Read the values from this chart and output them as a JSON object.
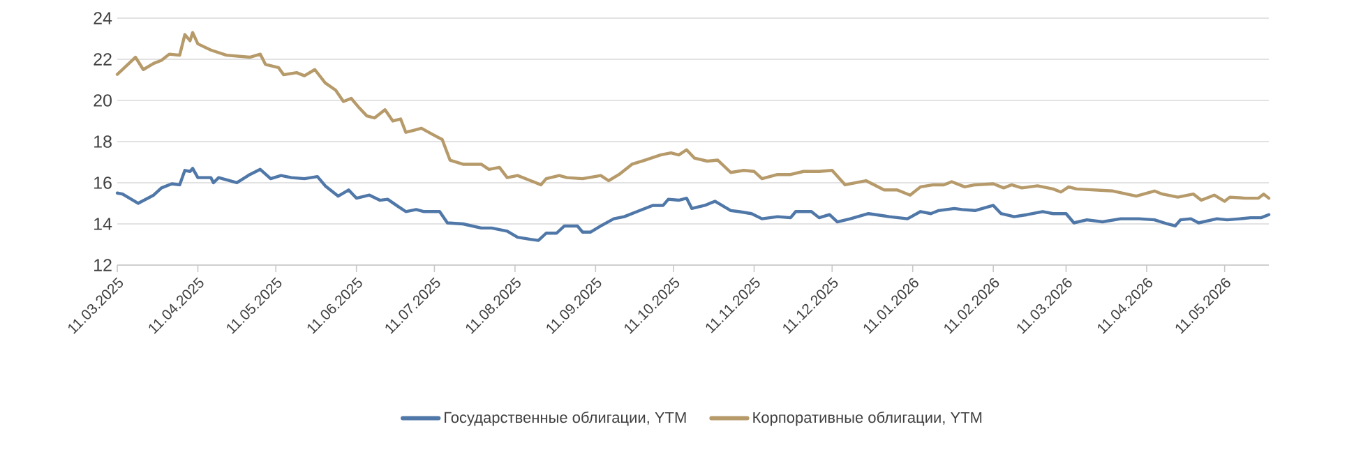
{
  "chart_data": {
    "type": "line",
    "xlim": [
      "2025-03-11",
      "2026-05-28"
    ],
    "ylim": [
      12,
      24
    ],
    "yticks": [
      12,
      14,
      16,
      18,
      20,
      22,
      24
    ],
    "xticks": [
      {
        "value": "2025-03-11",
        "label": "11.03.2025"
      },
      {
        "value": "2025-04-11",
        "label": "11.04.2025"
      },
      {
        "value": "2025-05-11",
        "label": "11.05.2025"
      },
      {
        "value": "2025-06-11",
        "label": "11.06.2025"
      },
      {
        "value": "2025-07-11",
        "label": "11.07.2025"
      },
      {
        "value": "2025-08-11",
        "label": "11.08.2025"
      },
      {
        "value": "2025-09-11",
        "label": "11.09.2025"
      },
      {
        "value": "2025-10-11",
        "label": "11.10.2025"
      },
      {
        "value": "2025-11-11",
        "label": "11.11.2025"
      },
      {
        "value": "2025-12-11",
        "label": "11.12.2025"
      },
      {
        "value": "2026-01-11",
        "label": "11.01.2026"
      },
      {
        "value": "2026-02-11",
        "label": "11.02.2026"
      },
      {
        "value": "2026-03-11",
        "label": "11.03.2026"
      },
      {
        "value": "2026-04-11",
        "label": "11.04.2026"
      },
      {
        "value": "2026-05-11",
        "label": "11.05.2026"
      }
    ],
    "grid": "y",
    "legend": "bottom",
    "series": [
      {
        "name": "Государственные облигации, YTM",
        "color": "#4f77a8",
        "x": [
          "2025-03-11",
          "2025-03-13",
          "2025-03-19",
          "2025-03-25",
          "2025-03-28",
          "2025-04-01",
          "2025-04-04",
          "2025-04-06",
          "2025-04-08",
          "2025-04-09",
          "2025-04-11",
          "2025-04-16",
          "2025-04-17",
          "2025-04-19",
          "2025-04-26",
          "2025-05-01",
          "2025-05-05",
          "2025-05-09",
          "2025-05-13",
          "2025-05-17",
          "2025-05-22",
          "2025-05-27",
          "2025-05-30",
          "2025-06-04",
          "2025-06-08",
          "2025-06-11",
          "2025-06-16",
          "2025-06-20",
          "2025-06-23",
          "2025-06-27",
          "2025-06-30",
          "2025-07-04",
          "2025-07-07",
          "2025-07-13",
          "2025-07-16",
          "2025-07-22",
          "2025-07-29",
          "2025-08-02",
          "2025-08-08",
          "2025-08-12",
          "2025-08-17",
          "2025-08-20",
          "2025-08-23",
          "2025-08-27",
          "2025-08-30",
          "2025-09-04",
          "2025-09-06",
          "2025-09-09",
          "2025-09-13",
          "2025-09-18",
          "2025-09-22",
          "2025-09-27",
          "2025-10-03",
          "2025-10-07",
          "2025-10-09",
          "2025-10-13",
          "2025-10-16",
          "2025-10-18",
          "2025-10-23",
          "2025-10-27",
          "2025-11-02",
          "2025-11-05",
          "2025-11-10",
          "2025-11-14",
          "2025-11-20",
          "2025-11-25",
          "2025-11-27",
          "2025-12-03",
          "2025-12-06",
          "2025-12-10",
          "2025-12-13",
          "2025-12-18",
          "2025-12-25",
          "2026-01-02",
          "2026-01-09",
          "2026-01-14",
          "2026-01-18",
          "2026-01-21",
          "2026-01-27",
          "2026-01-30",
          "2026-02-04",
          "2026-02-11",
          "2026-02-14",
          "2026-02-19",
          "2026-02-24",
          "2026-03-02",
          "2026-03-06",
          "2026-03-11",
          "2026-03-14",
          "2026-03-19",
          "2026-03-25",
          "2026-04-01",
          "2026-04-08",
          "2026-04-14",
          "2026-04-19",
          "2026-04-22",
          "2026-04-24",
          "2026-04-28",
          "2026-05-01",
          "2026-05-08",
          "2026-05-12",
          "2026-05-17",
          "2026-05-21",
          "2026-05-25",
          "2026-05-28"
        ],
        "values": [
          15.5,
          15.45,
          15.0,
          15.4,
          15.75,
          15.95,
          15.9,
          16.6,
          16.55,
          16.7,
          16.25,
          16.25,
          16.0,
          16.25,
          16.0,
          16.4,
          16.65,
          16.2,
          16.35,
          16.25,
          16.2,
          16.3,
          15.85,
          15.35,
          15.65,
          15.25,
          15.4,
          15.15,
          15.2,
          14.85,
          14.6,
          14.7,
          14.6,
          14.6,
          14.05,
          14.0,
          13.8,
          13.8,
          13.65,
          13.35,
          13.25,
          13.2,
          13.55,
          13.55,
          13.9,
          13.9,
          13.6,
          13.6,
          13.9,
          14.25,
          14.35,
          14.6,
          14.9,
          14.9,
          15.2,
          15.15,
          15.25,
          14.75,
          14.9,
          15.1,
          14.65,
          14.6,
          14.5,
          14.25,
          14.35,
          14.3,
          14.6,
          14.6,
          14.3,
          14.45,
          14.1,
          14.25,
          14.5,
          14.35,
          14.25,
          14.6,
          14.5,
          14.65,
          14.75,
          14.7,
          14.65,
          14.9,
          14.5,
          14.35,
          14.45,
          14.6,
          14.5,
          14.5,
          14.05,
          14.2,
          14.1,
          14.25,
          14.25,
          14.2,
          14.0,
          13.9,
          14.2,
          14.25,
          14.05,
          14.25,
          14.2,
          14.25,
          14.3,
          14.3,
          14.45
        ]
      },
      {
        "name": "Корпоративные облигации, YTM",
        "color": "#b69a6a",
        "x": [
          "2025-03-11",
          "2025-03-13",
          "2025-03-18",
          "2025-03-21",
          "2025-03-25",
          "2025-03-28",
          "2025-03-31",
          "2025-04-04",
          "2025-04-06",
          "2025-04-08",
          "2025-04-09",
          "2025-04-11",
          "2025-04-16",
          "2025-04-22",
          "2025-05-01",
          "2025-05-05",
          "2025-05-07",
          "2025-05-12",
          "2025-05-14",
          "2025-05-19",
          "2025-05-22",
          "2025-05-26",
          "2025-05-30",
          "2025-06-03",
          "2025-06-06",
          "2025-06-09",
          "2025-06-12",
          "2025-06-15",
          "2025-06-18",
          "2025-06-22",
          "2025-06-25",
          "2025-06-28",
          "2025-06-30",
          "2025-07-03",
          "2025-07-06",
          "2025-07-11",
          "2025-07-14",
          "2025-07-17",
          "2025-07-22",
          "2025-07-29",
          "2025-08-01",
          "2025-08-05",
          "2025-08-08",
          "2025-08-12",
          "2025-08-17",
          "2025-08-21",
          "2025-08-23",
          "2025-08-28",
          "2025-08-31",
          "2025-09-06",
          "2025-09-13",
          "2025-09-16",
          "2025-09-20",
          "2025-09-25",
          "2025-09-30",
          "2025-10-06",
          "2025-10-10",
          "2025-10-13",
          "2025-10-16",
          "2025-10-19",
          "2025-10-24",
          "2025-10-28",
          "2025-11-02",
          "2025-11-07",
          "2025-11-11",
          "2025-11-14",
          "2025-11-20",
          "2025-11-25",
          "2025-11-30",
          "2025-12-06",
          "2025-12-11",
          "2025-12-16",
          "2025-12-24",
          "2025-12-31",
          "2026-01-05",
          "2026-01-10",
          "2026-01-14",
          "2026-01-19",
          "2026-01-23",
          "2026-01-26",
          "2026-01-31",
          "2026-02-04",
          "2026-02-11",
          "2026-02-15",
          "2026-02-18",
          "2026-02-22",
          "2026-02-28",
          "2026-03-06",
          "2026-03-09",
          "2026-03-12",
          "2026-03-15",
          "2026-03-22",
          "2026-03-29",
          "2026-04-07",
          "2026-04-14",
          "2026-04-17",
          "2026-04-23",
          "2026-04-29",
          "2026-05-02",
          "2026-05-07",
          "2026-05-11",
          "2026-05-13",
          "2026-05-19",
          "2026-05-24",
          "2026-05-26",
          "2026-05-28"
        ],
        "values": [
          21.27,
          21.5,
          22.1,
          21.5,
          21.8,
          21.95,
          22.25,
          22.2,
          23.2,
          22.9,
          23.3,
          22.75,
          22.45,
          22.2,
          22.1,
          22.25,
          21.75,
          21.6,
          21.25,
          21.35,
          21.2,
          21.5,
          20.85,
          20.5,
          19.95,
          20.1,
          19.65,
          19.25,
          19.15,
          19.55,
          19.0,
          19.1,
          18.45,
          18.55,
          18.65,
          18.3,
          18.1,
          17.1,
          16.9,
          16.9,
          16.65,
          16.75,
          16.25,
          16.35,
          16.1,
          15.9,
          16.2,
          16.35,
          16.25,
          16.2,
          16.35,
          16.1,
          16.4,
          16.9,
          17.1,
          17.35,
          17.45,
          17.35,
          17.6,
          17.2,
          17.05,
          17.1,
          16.5,
          16.6,
          16.55,
          16.2,
          16.4,
          16.4,
          16.55,
          16.55,
          16.6,
          15.9,
          16.1,
          15.65,
          15.65,
          15.4,
          15.8,
          15.9,
          15.9,
          16.05,
          15.8,
          15.9,
          15.95,
          15.75,
          15.9,
          15.75,
          15.85,
          15.7,
          15.55,
          15.8,
          15.7,
          15.65,
          15.6,
          15.35,
          15.6,
          15.45,
          15.3,
          15.45,
          15.15,
          15.4,
          15.1,
          15.3,
          15.25,
          15.25,
          15.45,
          15.25
        ]
      }
    ]
  }
}
